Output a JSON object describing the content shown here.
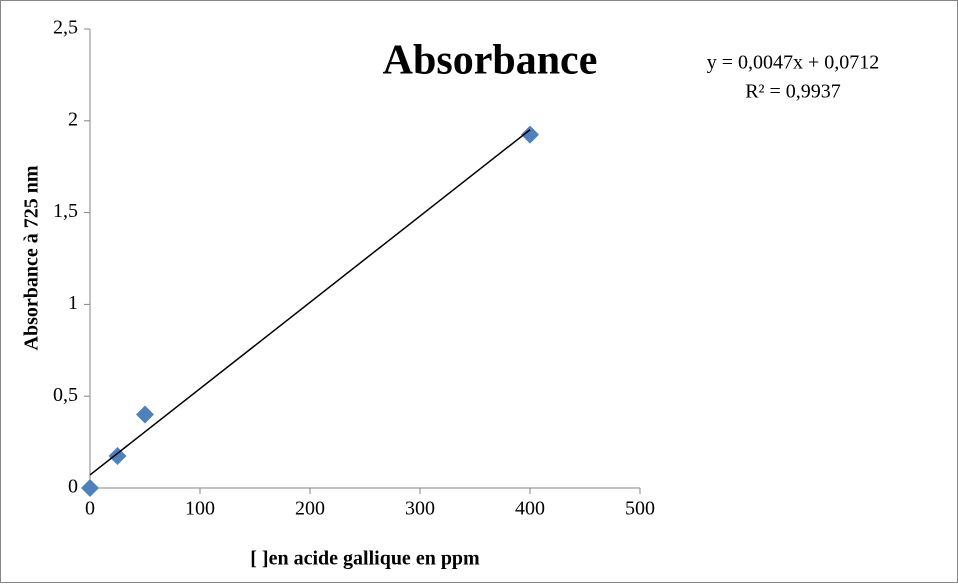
{
  "chart_data": {
    "type": "scatter",
    "title": "Absorbance",
    "x_label": "[ ]en acide gallique en ppm",
    "y_label": "Absorbance à 725 nm",
    "x": [
      0,
      25,
      50,
      400
    ],
    "values": [
      0,
      0.174,
      0.4,
      1.925
    ],
    "color": "#4f81bd",
    "marker": "diamond",
    "xlim": [
      0,
      500
    ],
    "ylim": [
      0,
      2.5
    ],
    "xticks": [
      0,
      100,
      200,
      300,
      400,
      500
    ],
    "yticks": [
      0,
      {
        "value": 0.5,
        "label": "0,5"
      },
      1,
      {
        "value": 1.5,
        "label": "1,5"
      },
      2,
      {
        "value": 2.5,
        "label": "2,5"
      }
    ],
    "grid": false,
    "trendline": {
      "slope": 0.0047,
      "intercept": 0.0712,
      "equation": "y = 0,0047x + 0,0712",
      "r2": "R² = 0,9937",
      "color": "#000000"
    }
  }
}
